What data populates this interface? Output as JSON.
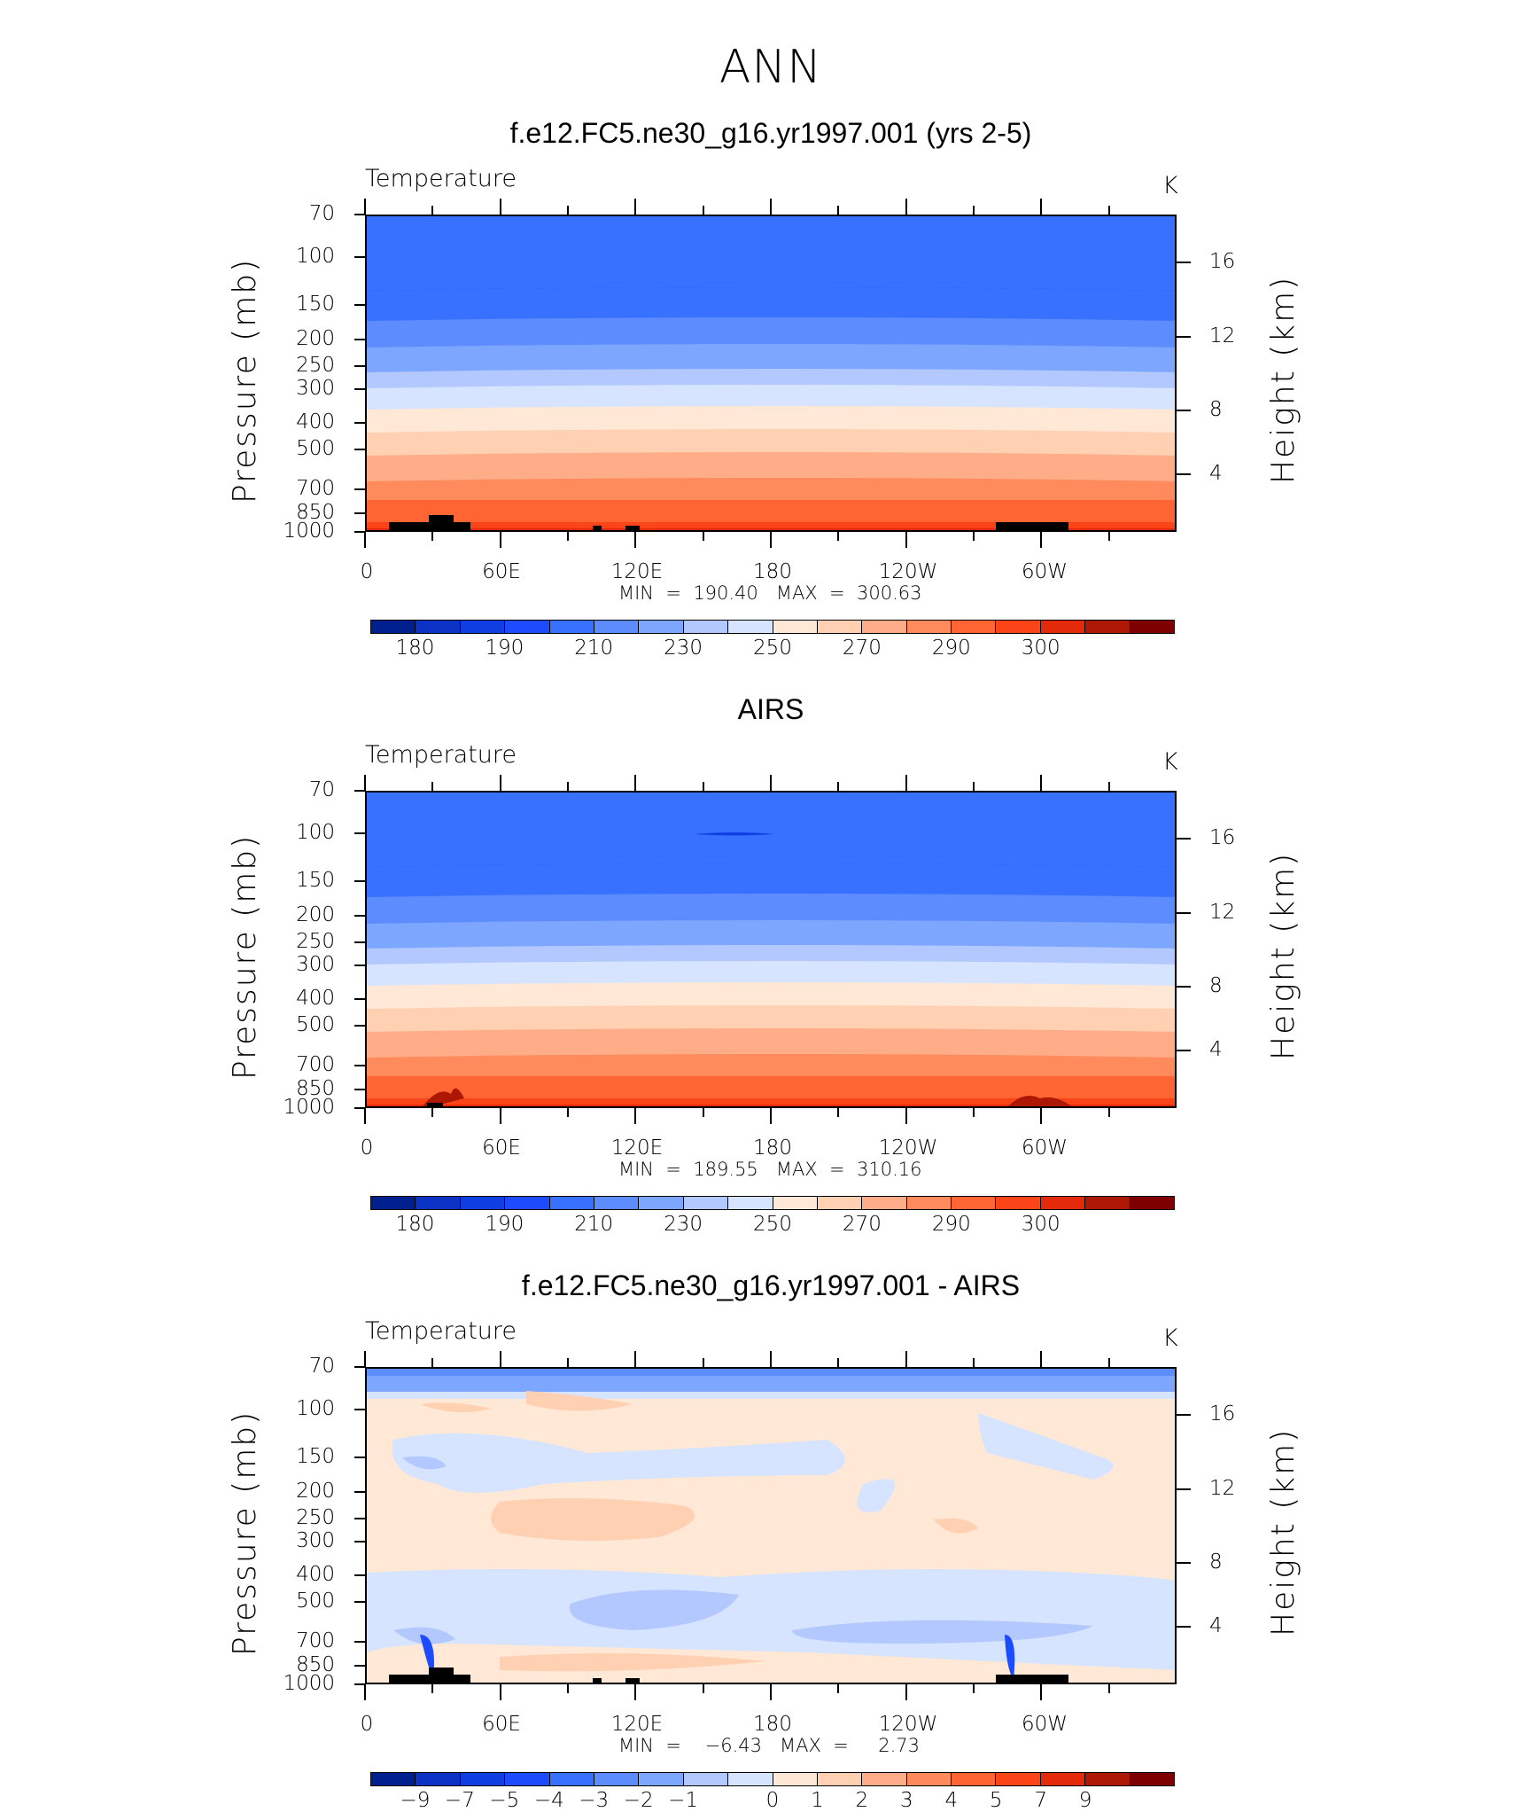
{
  "main_title": "ANN",
  "colors": {
    "levels_abs": [
      "#00208f",
      "#0b33c5",
      "#0f3ee3",
      "#1c4cfe",
      "#3870ff",
      "#5d8cff",
      "#7da6ff",
      "#b3c8ff",
      "#d6e4ff",
      "#ffe8d5",
      "#ffd0b2",
      "#ffad88",
      "#ff8a5c",
      "#ff6433",
      "#fb4518",
      "#e32a0b",
      "#ac1804",
      "#7f0000"
    ],
    "levels_diff": [
      "#00208f",
      "#0b33c5",
      "#0f3ee3",
      "#1c4cfe",
      "#3870ff",
      "#5d8cff",
      "#7da6ff",
      "#b3c8ff",
      "#d6e4ff",
      "#ffe8d5",
      "#ffd0b2",
      "#ffad88",
      "#ff8a5c",
      "#ff6433",
      "#fb4518",
      "#e32a0b",
      "#ac1804",
      "#7f0000"
    ]
  },
  "panels": [
    {
      "title": "f.e12.FC5.ne30_g16.yr1997.001 (yrs 2-5)",
      "variable": "Temperature",
      "units": "K",
      "ylabel": "Pressure (mb)",
      "ylabel_right": "Height (km)",
      "pressure_ticks": [
        "70",
        "100",
        "150",
        "200",
        "250",
        "300",
        "400",
        "500",
        "700",
        "850",
        "1000"
      ],
      "height_ticks": [
        "16",
        "12",
        "8",
        "4"
      ],
      "lon_ticks": [
        "0",
        "60E",
        "120E",
        "180",
        "120W",
        "60W"
      ],
      "stats": "MIN  =  190.40   MAX  =  300.63",
      "colorbar_labels": [
        "180",
        "190",
        "210",
        "230",
        "250",
        "270",
        "290",
        "300"
      ]
    },
    {
      "title": "AIRS",
      "variable": "Temperature",
      "units": "K",
      "ylabel": "Pressure (mb)",
      "ylabel_right": "Height (km)",
      "pressure_ticks": [
        "70",
        "100",
        "150",
        "200",
        "250",
        "300",
        "400",
        "500",
        "700",
        "850",
        "1000"
      ],
      "height_ticks": [
        "16",
        "12",
        "8",
        "4"
      ],
      "lon_ticks": [
        "0",
        "60E",
        "120E",
        "180",
        "120W",
        "60W"
      ],
      "stats": "MIN  =  189.55   MAX  =  310.16",
      "colorbar_labels": [
        "180",
        "190",
        "210",
        "230",
        "250",
        "270",
        "290",
        "300"
      ]
    },
    {
      "title": "f.e12.FC5.ne30_g16.yr1997.001 - AIRS",
      "variable": "Temperature",
      "units": "K",
      "ylabel": "Pressure (mb)",
      "ylabel_right": "Height (km)",
      "pressure_ticks": [
        "70",
        "100",
        "150",
        "200",
        "250",
        "300",
        "400",
        "500",
        "700",
        "850",
        "1000"
      ],
      "height_ticks": [
        "16",
        "12",
        "8",
        "4"
      ],
      "lon_ticks": [
        "0",
        "60E",
        "120E",
        "180",
        "120W",
        "60W"
      ],
      "stats": "MIN  =    −6.43   MAX  =     2.73",
      "colorbar_labels": [
        "−9",
        "−7",
        "−5",
        "−4",
        "−3",
        "−2",
        "−1",
        "0",
        "1",
        "2",
        "3",
        "4",
        "5",
        "7",
        "9"
      ]
    }
  ],
  "chart_data": [
    {
      "type": "heatmap",
      "title": "f.e12.FC5.ne30_g16.yr1997.001 (yrs 2-5)",
      "variable": "Temperature",
      "units": "K",
      "x_axis": [
        "0",
        "60E",
        "120E",
        "180",
        "120W",
        "60W"
      ],
      "y_axis_pressure_mb": [
        70,
        100,
        150,
        200,
        250,
        300,
        400,
        500,
        700,
        850,
        1000
      ],
      "y_axis_height_km": [
        16,
        12,
        8,
        4
      ],
      "contour_levels": [
        175,
        180,
        185,
        190,
        200,
        210,
        220,
        230,
        240,
        250,
        260,
        270,
        280,
        290,
        295,
        300,
        305
      ],
      "min": 190.4,
      "max": 300.63
    },
    {
      "type": "heatmap",
      "title": "AIRS",
      "variable": "Temperature",
      "units": "K",
      "x_axis": [
        "0",
        "60E",
        "120E",
        "180",
        "120W",
        "60W"
      ],
      "y_axis_pressure_mb": [
        70,
        100,
        150,
        200,
        250,
        300,
        400,
        500,
        700,
        850,
        1000
      ],
      "y_axis_height_km": [
        16,
        12,
        8,
        4
      ],
      "contour_levels": [
        175,
        180,
        185,
        190,
        200,
        210,
        220,
        230,
        240,
        250,
        260,
        270,
        280,
        290,
        295,
        300,
        305
      ],
      "min": 189.55,
      "max": 310.16
    },
    {
      "type": "heatmap",
      "title": "f.e12.FC5.ne30_g16.yr1997.001 - AIRS",
      "variable": "Temperature",
      "units": "K",
      "x_axis": [
        "0",
        "60E",
        "120E",
        "180",
        "120W",
        "60W"
      ],
      "y_axis_pressure_mb": [
        70,
        100,
        150,
        200,
        250,
        300,
        400,
        500,
        700,
        850,
        1000
      ],
      "y_axis_height_km": [
        16,
        12,
        8,
        4
      ],
      "contour_levels": [
        -9,
        -8,
        -7,
        -6,
        -5,
        -4,
        -3,
        -2,
        -1,
        0,
        1,
        2,
        3,
        4,
        5,
        7,
        9
      ],
      "min": -6.43,
      "max": 2.73
    }
  ]
}
